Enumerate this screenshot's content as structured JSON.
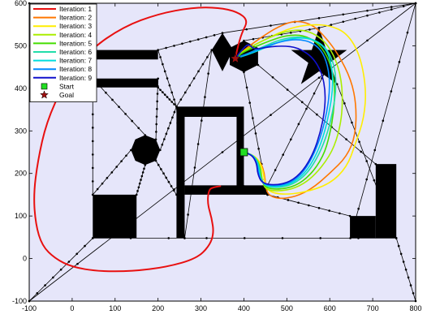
{
  "chart_data": {
    "type": "line",
    "title": "",
    "xlabel": "",
    "ylabel": "",
    "xlim": [
      -100,
      800
    ],
    "ylim": [
      -100,
      600
    ],
    "xticks": [
      -100,
      0,
      100,
      200,
      300,
      400,
      500,
      600,
      700,
      800
    ],
    "yticks": [
      -100,
      0,
      100,
      200,
      300,
      400,
      500,
      600
    ],
    "grid": false,
    "legend_position": "top-left",
    "colors": {
      "background": "#e6e6fa",
      "obstacle": "#000000",
      "roadmap": "#000000",
      "start": "#22dd22",
      "goal": "#a01010"
    },
    "obstacles": [
      {
        "name": "upper-bar",
        "polygon": [
          [
            48,
            490
          ],
          [
            200,
            490
          ],
          [
            200,
            468
          ],
          [
            48,
            468
          ]
        ]
      },
      {
        "name": "mid-bar",
        "polygon": [
          [
            48,
            423
          ],
          [
            200,
            423
          ],
          [
            200,
            402
          ],
          [
            48,
            402
          ]
        ]
      },
      {
        "name": "hexagon-small",
        "polygon": [
          [
            170,
            290
          ],
          [
            195,
            280
          ],
          [
            205,
            255
          ],
          [
            195,
            230
          ],
          [
            170,
            220
          ],
          [
            147,
            230
          ],
          [
            137,
            255
          ],
          [
            147,
            280
          ]
        ]
      },
      {
        "name": "left-block",
        "polygon": [
          [
            48,
            150
          ],
          [
            150,
            150
          ],
          [
            150,
            48
          ],
          [
            48,
            48
          ]
        ]
      },
      {
        "name": "box-top",
        "polygon": [
          [
            243,
            357
          ],
          [
            400,
            357
          ],
          [
            400,
            333
          ],
          [
            243,
            333
          ]
        ]
      },
      {
        "name": "box-left",
        "polygon": [
          [
            243,
            333
          ],
          [
            262,
            333
          ],
          [
            262,
            48
          ],
          [
            243,
            48
          ]
        ]
      },
      {
        "name": "box-right",
        "polygon": [
          [
            383,
            333
          ],
          [
            400,
            333
          ],
          [
            400,
            170
          ],
          [
            383,
            170
          ]
        ]
      },
      {
        "name": "box-bottom",
        "polygon": [
          [
            262,
            172
          ],
          [
            455,
            172
          ],
          [
            455,
            150
          ],
          [
            262,
            150
          ]
        ]
      },
      {
        "name": "diamond",
        "polygon": [
          [
            350,
            530
          ],
          [
            375,
            490
          ],
          [
            350,
            440
          ],
          [
            325,
            490
          ]
        ]
      },
      {
        "name": "hexagon-large",
        "polygon": [
          [
            400,
            512
          ],
          [
            433,
            495
          ],
          [
            433,
            455
          ],
          [
            400,
            438
          ],
          [
            367,
            455
          ],
          [
            367,
            495
          ]
        ]
      },
      {
        "name": "star",
        "polygon": [
          [
            575,
            542
          ],
          [
            592,
            490
          ],
          [
            640,
            490
          ],
          [
            600,
            460
          ],
          [
            617,
            410
          ],
          [
            575,
            440
          ],
          [
            533,
            410
          ],
          [
            550,
            460
          ],
          [
            510,
            490
          ],
          [
            558,
            490
          ]
        ]
      },
      {
        "name": "right-tall",
        "polygon": [
          [
            707,
            222
          ],
          [
            755,
            222
          ],
          [
            755,
            48
          ],
          [
            707,
            48
          ]
        ]
      },
      {
        "name": "right-small",
        "polygon": [
          [
            647,
            100
          ],
          [
            707,
            100
          ],
          [
            707,
            48
          ],
          [
            647,
            48
          ]
        ]
      }
    ],
    "roadmap_edges": [
      [
        [
          -100,
          -100
        ],
        [
          800,
          600
        ]
      ],
      [
        [
          -100,
          -100
        ],
        [
          48,
          48
        ]
      ],
      [
        [
          800,
          -100
        ],
        [
          755,
          48
        ]
      ],
      [
        [
          -100,
          600
        ],
        [
          48,
          490
        ]
      ],
      [
        [
          800,
          600
        ],
        [
          648,
          48
        ]
      ],
      [
        [
          800,
          600
        ],
        [
          350,
          530
        ]
      ],
      [
        [
          800,
          600
        ],
        [
          575,
          542
        ]
      ],
      [
        [
          48,
          48
        ],
        [
          755,
          48
        ]
      ],
      [
        [
          200,
          490
        ],
        [
          243,
          357
        ]
      ],
      [
        [
          200,
          402
        ],
        [
          243,
          357
        ]
      ],
      [
        [
          243,
          357
        ],
        [
          262,
          48
        ]
      ],
      [
        [
          205,
          255
        ],
        [
          243,
          357
        ]
      ],
      [
        [
          137,
          255
        ],
        [
          48,
          150
        ]
      ],
      [
        [
          170,
          220
        ],
        [
          150,
          150
        ]
      ],
      [
        [
          195,
          230
        ],
        [
          243,
          150
        ]
      ],
      [
        [
          48,
          423
        ],
        [
          170,
          290
        ]
      ],
      [
        [
          200,
          423
        ],
        [
          195,
          280
        ]
      ],
      [
        [
          48,
          402
        ],
        [
          48,
          150
        ]
      ],
      [
        [
          243,
          357
        ],
        [
          325,
          490
        ]
      ],
      [
        [
          262,
          48
        ],
        [
          325,
          490
        ]
      ],
      [
        [
          455,
          172
        ],
        [
          600,
          460
        ]
      ],
      [
        [
          433,
          455
        ],
        [
          707,
          222
        ]
      ],
      [
        [
          400,
          438
        ],
        [
          455,
          150
        ]
      ],
      [
        [
          617,
          410
        ],
        [
          755,
          48
        ]
      ],
      [
        [
          200,
          490
        ],
        [
          350,
          530
        ]
      ],
      [
        [
          400,
          512
        ],
        [
          575,
          542
        ]
      ],
      [
        [
          455,
          150
        ],
        [
          647,
          100
        ]
      ],
      [
        [
          400,
          170
        ],
        [
          455,
          150
        ]
      ]
    ],
    "start": {
      "label": "Start",
      "x": 400,
      "y": 250
    },
    "goal": {
      "label": "Goal",
      "x": 380,
      "y": 470
    },
    "series": [
      {
        "name": "Iteration: 1",
        "color": "#e81010",
        "width": 2,
        "x": [
          380,
          385,
          395,
          410,
          385,
          340,
          280,
          200,
          120,
          40,
          -20,
          -60,
          -80,
          -90,
          -85,
          -70,
          -40,
          0,
          60,
          140,
          220,
          290,
          320,
          330,
          325,
          315,
          318,
          330,
          345
        ],
        "y": [
          470,
          495,
          530,
          560,
          580,
          590,
          590,
          575,
          545,
          490,
          410,
          320,
          230,
          150,
          80,
          30,
          0,
          -20,
          -30,
          -30,
          -20,
          0,
          30,
          60,
          95,
          130,
          162,
          168,
          170
        ]
      },
      {
        "name": "Iteration: 2",
        "color": "#ff7700",
        "width": 1.6,
        "x": [
          400,
          420,
          440,
          448,
          450,
          455,
          480,
          520,
          560,
          600,
          640,
          660,
          662,
          650,
          620,
          590,
          560,
          520,
          480,
          440,
          400,
          380
        ],
        "y": [
          250,
          244,
          225,
          200,
          175,
          150,
          140,
          145,
          165,
          200,
          240,
          290,
          360,
          420,
          480,
          520,
          550,
          560,
          545,
          520,
          490,
          470
        ]
      },
      {
        "name": "Iteration: 3",
        "color": "#ffee00",
        "width": 1.6,
        "x": [
          400,
          418,
          436,
          445,
          448,
          456,
          490,
          540,
          600,
          640,
          660,
          680,
          685,
          670,
          640,
          600,
          560,
          520,
          480,
          440,
          400,
          380
        ],
        "y": [
          250,
          246,
          230,
          205,
          180,
          158,
          150,
          155,
          175,
          215,
          270,
          330,
          400,
          480,
          530,
          548,
          550,
          545,
          530,
          510,
          488,
          470
        ]
      },
      {
        "name": "Iteration: 4",
        "color": "#aaee00",
        "width": 1.6,
        "x": [
          400,
          416,
          432,
          440,
          442,
          450,
          480,
          520,
          560,
          600,
          620,
          630,
          628,
          610,
          580,
          540,
          500,
          460,
          420,
          395,
          380
        ],
        "y": [
          250,
          246,
          232,
          210,
          185,
          162,
          158,
          165,
          190,
          240,
          290,
          350,
          420,
          480,
          520,
          538,
          535,
          520,
          500,
          485,
          470
        ]
      },
      {
        "name": "Iteration: 5",
        "color": "#44dd00",
        "width": 1.6,
        "x": [
          400,
          414,
          430,
          438,
          440,
          450,
          480,
          520,
          555,
          585,
          600,
          610,
          612,
          600,
          575,
          540,
          500,
          460,
          420,
          395,
          380
        ],
        "y": [
          250,
          246,
          234,
          212,
          188,
          166,
          162,
          170,
          196,
          240,
          290,
          350,
          410,
          465,
          505,
          525,
          525,
          512,
          495,
          483,
          470
        ]
      },
      {
        "name": "Iteration: 6",
        "color": "#22ddaa",
        "width": 1.6,
        "x": [
          400,
          413,
          428,
          436,
          438,
          448,
          478,
          515,
          548,
          575,
          595,
          608,
          615,
          612,
          595,
          565,
          525,
          485,
          445,
          410,
          390,
          380
        ],
        "y": [
          250,
          247,
          236,
          215,
          192,
          170,
          166,
          174,
          200,
          244,
          295,
          350,
          400,
          450,
          492,
          515,
          522,
          515,
          498,
          482,
          475,
          470
        ]
      },
      {
        "name": "Iteration: 7",
        "color": "#00dddd",
        "width": 1.6,
        "x": [
          400,
          412,
          426,
          434,
          436,
          446,
          476,
          512,
          544,
          570,
          588,
          600,
          607,
          606,
          595,
          570,
          535,
          495,
          455,
          420,
          395,
          380
        ],
        "y": [
          250,
          247,
          237,
          218,
          195,
          173,
          168,
          176,
          202,
          246,
          296,
          350,
          398,
          446,
          488,
          512,
          520,
          514,
          498,
          483,
          475,
          470
        ]
      },
      {
        "name": "Iteration: 8",
        "color": "#0088ff",
        "width": 1.6,
        "x": [
          400,
          411,
          424,
          432,
          434,
          444,
          474,
          510,
          540,
          564,
          582,
          594,
          600,
          598,
          585,
          560,
          525,
          485,
          445,
          410,
          388,
          380
        ],
        "y": [
          250,
          247,
          238,
          220,
          197,
          175,
          170,
          178,
          204,
          247,
          296,
          348,
          396,
          442,
          484,
          508,
          516,
          510,
          496,
          482,
          474,
          470
        ]
      },
      {
        "name": "Iteration: 9",
        "color": "#1010cc",
        "width": 1.6,
        "x": [
          400,
          410,
          422,
          430,
          432,
          442,
          472,
          508,
          538,
          562,
          578,
          588,
          590,
          582,
          560,
          525,
          490,
          455,
          430,
          420,
          410,
          395,
          380
        ],
        "y": [
          250,
          247,
          239,
          222,
          199,
          177,
          172,
          180,
          206,
          248,
          296,
          346,
          392,
          436,
          474,
          496,
          500,
          497,
          492,
          495,
          505,
          490,
          470
        ]
      }
    ]
  }
}
